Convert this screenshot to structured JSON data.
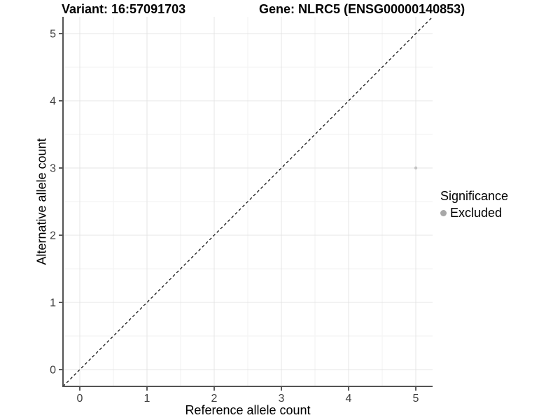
{
  "chart_data": {
    "type": "scatter",
    "title_left": "Variant: 16:57091703",
    "title_right": "Gene: NLRC5 (ENSG00000140853)",
    "xlabel": "Reference allele count",
    "ylabel": "Alternative allele count",
    "xlim": [
      -0.25,
      5.25
    ],
    "ylim": [
      -0.25,
      5.25
    ],
    "x_ticks": [
      0,
      1,
      2,
      3,
      4,
      5
    ],
    "y_ticks": [
      0,
      1,
      2,
      3,
      4,
      5
    ],
    "x_minor_ticks": [
      0.5,
      1.5,
      2.5,
      3.5,
      4.5
    ],
    "y_minor_ticks": [
      0.5,
      1.5,
      2.5,
      3.5,
      4.5
    ],
    "grid": "major+minor",
    "legend_position": "right",
    "legend": {
      "title": "Significance",
      "entries": [
        "Excluded"
      ],
      "marker_color": "#a8a8a8"
    },
    "series": [
      {
        "name": "Excluded",
        "color": "#c3c3c3",
        "points": [
          [
            5,
            3
          ]
        ]
      }
    ],
    "reference_line": {
      "slope": 1,
      "intercept": 0,
      "style": "dashed",
      "color": "#000000"
    }
  },
  "colors": {
    "background": "#ffffff",
    "grid_major": "#e4e4e4",
    "grid_minor": "#f2f2f2",
    "axis_line": "#545454",
    "tick_mark": "#333333",
    "tick_label": "#404040"
  }
}
